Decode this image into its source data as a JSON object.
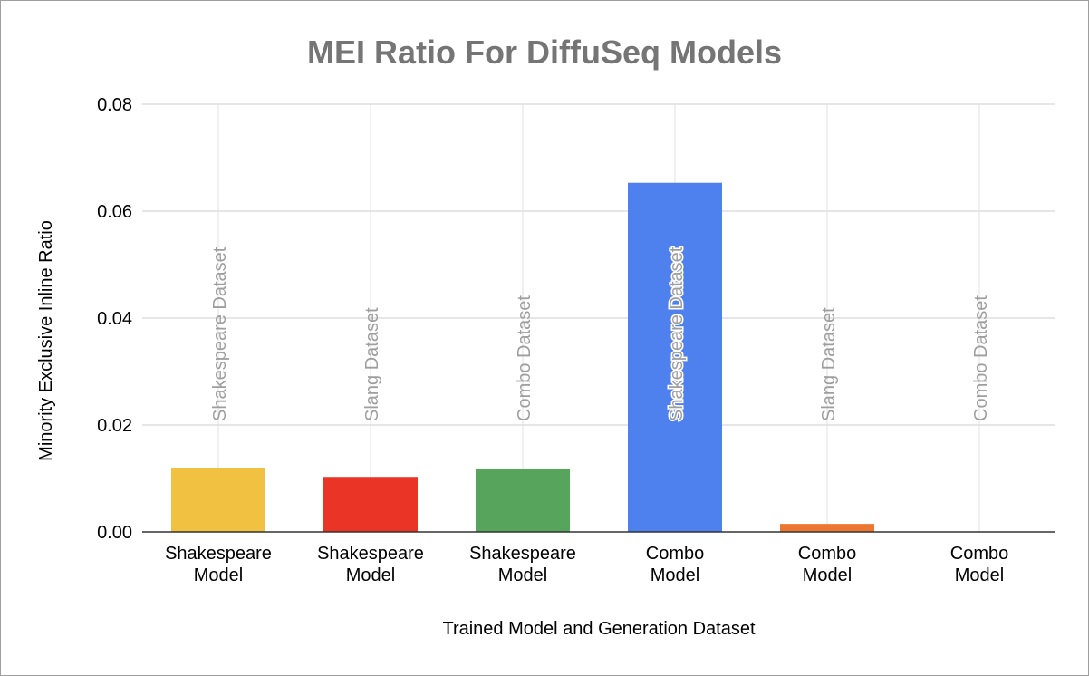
{
  "chart_data": {
    "type": "bar",
    "title": "MEI Ratio For DiffuSeq Models",
    "xlabel": "Trained Model and Generation Dataset",
    "ylabel": "Minority Exclusive Inline Ratio",
    "ylim": [
      0,
      0.08
    ],
    "yticks": [
      "0.00",
      "0.02",
      "0.04",
      "0.06",
      "0.08"
    ],
    "grid": true,
    "categories": [
      [
        "Shakespeare",
        "Model"
      ],
      [
        "Shakespeare",
        "Model"
      ],
      [
        "Shakespeare",
        "Model"
      ],
      [
        "Combo",
        "Model"
      ],
      [
        "Combo",
        "Model"
      ],
      [
        "Combo",
        "Model"
      ]
    ],
    "values": [
      0.012,
      0.0103,
      0.0117,
      0.0653,
      0.0015,
      0.0
    ],
    "data_labels": [
      "Shakespeare Dataset",
      "Slang Dataset",
      "Combo Dataset",
      "Shakespeare Dataset",
      "Slang Dataset",
      "Combo Dataset"
    ],
    "colors": [
      "#f1c142",
      "#e93426",
      "#57a55c",
      "#4f81ee",
      "#ed7630",
      "#9e9e9e"
    ]
  }
}
